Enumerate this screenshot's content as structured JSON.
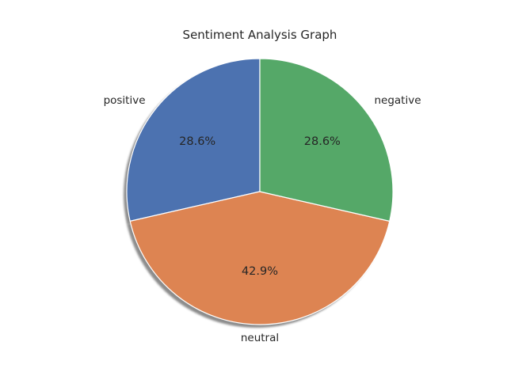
{
  "chart_data": {
    "type": "pie",
    "title": "Sentiment Analysis Graph",
    "start_angle_deg": 90,
    "direction": "counterclockwise",
    "shadow": true,
    "slices": [
      {
        "label": "positive",
        "value": 28.6,
        "pct_text": "28.6%",
        "color": "#4c72b0"
      },
      {
        "label": "neutral",
        "value": 42.9,
        "pct_text": "42.9%",
        "color": "#dd8452"
      },
      {
        "label": "negative",
        "value": 28.6,
        "pct_text": "28.6%",
        "color": "#55a868"
      }
    ]
  }
}
